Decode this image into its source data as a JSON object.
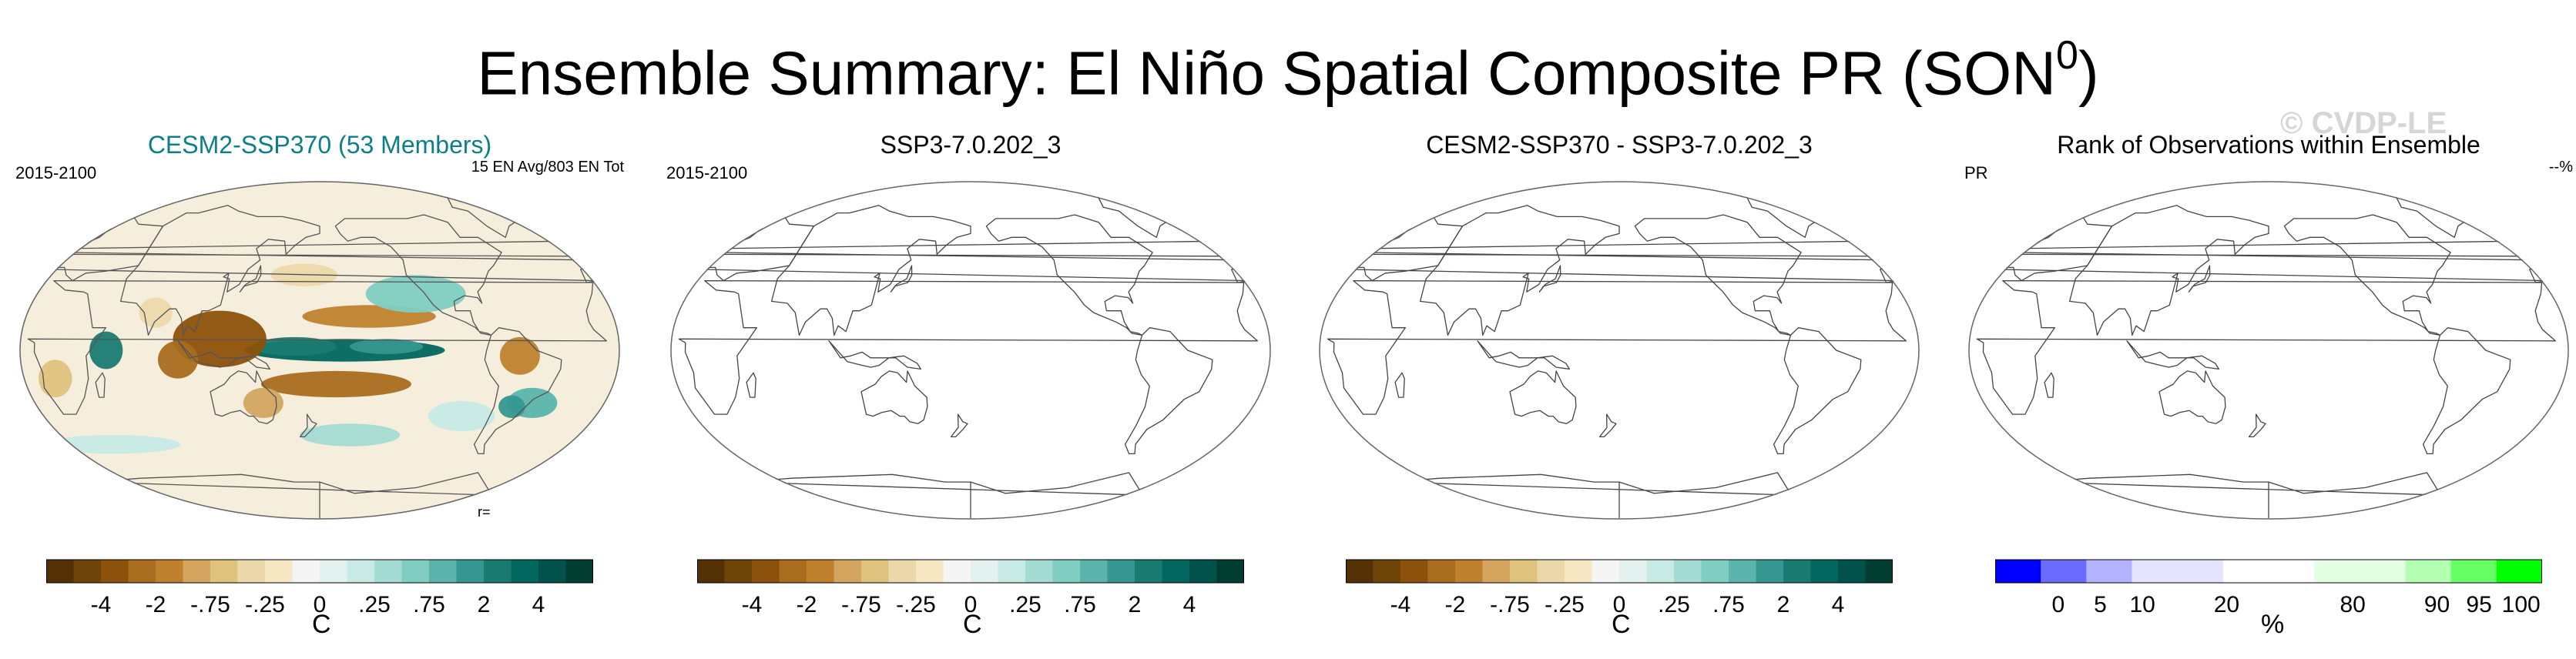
{
  "figure": {
    "title": "Ensemble Summary: El Niño Spatial Composite PR (SON",
    "title_sup": "0",
    "title_end": ")",
    "watermark": "© CVDP-LE"
  },
  "colors": {
    "diverging": [
      "#543005",
      "#6f4408",
      "#8c510a",
      "#a96d1f",
      "#bf812d",
      "#d3a55f",
      "#dfc27d",
      "#ecd9ab",
      "#f6e8c3",
      "#f5f5f5",
      "#e4f2ef",
      "#c7eae5",
      "#a4dbd3",
      "#80cdc1",
      "#5ab4ac",
      "#35978f",
      "#1a7a72",
      "#01665e",
      "#00524a",
      "#003c30"
    ],
    "rank": [
      "#0000ff",
      "#6b6bff",
      "#b3b3ff",
      "#e5e5ff",
      "#e5e5ff",
      "#ffffff",
      "#ffffff",
      "#e5ffe5",
      "#e5ffe5",
      "#b3ffb3",
      "#66ff66",
      "#00ff00"
    ],
    "map_outline": "#666666"
  },
  "chart_data": [
    {
      "type": "heatmap",
      "title": "CESM2-SSP370 (53 Members)",
      "left_label": "2015-2100",
      "right_label": "15 EN Avg/803 EN Tot",
      "annotation": "r=",
      "projection": "robinson, centered 180°",
      "colorbar_ticks": [
        "-4",
        "-2",
        "-.75",
        "-.25",
        "0",
        ".25",
        ".75",
        "2",
        "4"
      ],
      "colorbar_units": "C",
      "features": [
        {
          "name": "pacific-equatorial-wet-tongue",
          "value": 4
        },
        {
          "name": "maritime-continent-dry",
          "value": -3
        },
        {
          "name": "indian-ocean-west-wet",
          "value": 3
        },
        {
          "name": "south-pacific-dry-band",
          "value": -2
        },
        {
          "name": "amazon-dry",
          "value": -1.5
        },
        {
          "name": "north-pacific-dry-band",
          "value": -1.5
        }
      ]
    },
    {
      "type": "heatmap",
      "title": "SSP3-7.0.202_3",
      "left_label": "2015-2100",
      "right_label": "",
      "projection": "robinson, centered 180°",
      "colorbar_ticks": [
        "-4",
        "-2",
        "-.75",
        "-.25",
        "0",
        ".25",
        ".75",
        "2",
        "4"
      ],
      "colorbar_units": "C",
      "features": []
    },
    {
      "type": "heatmap",
      "title": "CESM2-SSP370 - SSP3-7.0.202_3",
      "left_label": "",
      "right_label": "",
      "projection": "robinson, centered 180°",
      "colorbar_ticks": [
        "-4",
        "-2",
        "-.75",
        "-.25",
        "0",
        ".25",
        ".75",
        "2",
        "4"
      ],
      "colorbar_units": "C",
      "features": []
    },
    {
      "type": "heatmap",
      "title": "Rank of Observations within Ensemble",
      "left_label": "PR",
      "right_label": "--%",
      "projection": "robinson, centered 180°",
      "colorbar_ticks": [
        "0",
        "5",
        "10",
        "20",
        "80",
        "90",
        "95",
        "100"
      ],
      "colorbar_units": "%",
      "features": []
    }
  ]
}
